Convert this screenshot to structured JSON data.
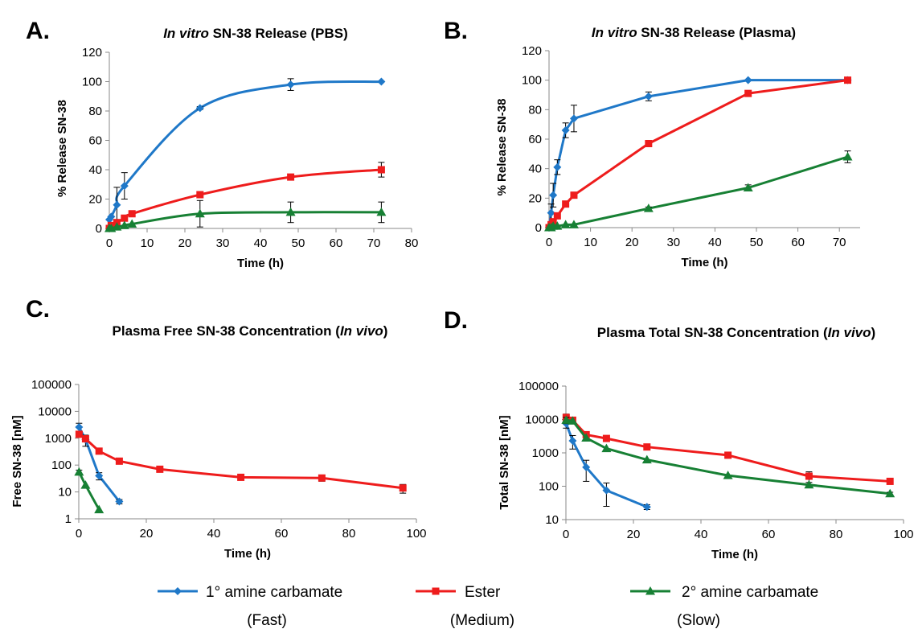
{
  "legend": [
    {
      "name": "1° amine carbamate",
      "sub": "(Fast)",
      "color": "#1f78c8",
      "marker": "diamond"
    },
    {
      "name": "Ester",
      "sub": "(Medium)",
      "color": "#ee1c1c",
      "marker": "square"
    },
    {
      "name": "2° amine carbamate",
      "sub": "(Slow)",
      "color": "#178034",
      "marker": "triangle"
    }
  ],
  "chart_data": [
    {
      "panel": "A.",
      "title_italic": "In vitro",
      "title_rest": " SN-38 Release (PBS)",
      "type": "line",
      "xlabel": "Time (h)",
      "ylabel": "% Release SN-38",
      "xlim": [
        0,
        80
      ],
      "ylim": [
        0,
        120
      ],
      "xticks": [
        0,
        10,
        20,
        30,
        40,
        50,
        60,
        70,
        80
      ],
      "yticks": [
        0,
        20,
        40,
        60,
        80,
        100,
        120
      ],
      "yscale": "linear",
      "smooth": true,
      "series": [
        {
          "name": "1° amine carbamate",
          "color": "#1f78c8",
          "marker": "diamond",
          "x": [
            0,
            0.5,
            2,
            4,
            24,
            48,
            72
          ],
          "y": [
            6,
            8,
            16,
            29,
            82,
            98,
            100
          ],
          "err": [
            0,
            0,
            12,
            9,
            1,
            4,
            0
          ]
        },
        {
          "name": "Ester",
          "color": "#ee1c1c",
          "marker": "square",
          "x": [
            0,
            0.5,
            2,
            4,
            6,
            24,
            48,
            72
          ],
          "y": [
            0,
            2,
            4,
            7,
            10,
            23,
            35,
            40
          ],
          "err": [
            0,
            0,
            0,
            0,
            0,
            1,
            1,
            5
          ]
        },
        {
          "name": "2° amine carbamate",
          "color": "#178034",
          "marker": "triangle",
          "x": [
            0,
            0.5,
            2,
            4,
            6,
            24,
            48,
            72
          ],
          "y": [
            0,
            0,
            1,
            2,
            3,
            10,
            11,
            11
          ],
          "err": [
            0,
            0,
            0,
            0,
            0,
            9,
            7,
            7
          ]
        }
      ]
    },
    {
      "panel": "B.",
      "title_italic": "In vitro",
      "title_rest": " SN-38 Release (Plasma)",
      "type": "line",
      "xlabel": "Time (h)",
      "ylabel": "% Release SN-38",
      "xlim": [
        0,
        75
      ],
      "ylim": [
        0,
        120
      ],
      "xticks": [
        0,
        10,
        20,
        30,
        40,
        50,
        60,
        70
      ],
      "yticks": [
        0,
        20,
        40,
        60,
        80,
        100,
        120
      ],
      "yscale": "linear",
      "smooth": false,
      "series": [
        {
          "name": "1° amine carbamate",
          "color": "#1f78c8",
          "marker": "diamond",
          "x": [
            0,
            0.5,
            1,
            2,
            4,
            6,
            24,
            48,
            72
          ],
          "y": [
            0,
            10,
            22,
            41,
            66,
            74,
            89,
            100,
            100
          ],
          "err": [
            0,
            6,
            8,
            5,
            5,
            9,
            3,
            0,
            0
          ]
        },
        {
          "name": "Ester",
          "color": "#ee1c1c",
          "marker": "square",
          "x": [
            0,
            0.5,
            1,
            2,
            4,
            6,
            24,
            48,
            72
          ],
          "y": [
            0,
            2,
            4,
            8,
            16,
            22,
            57,
            91,
            100
          ],
          "err": [
            0,
            0,
            0,
            0,
            0,
            0,
            0,
            0,
            0
          ]
        },
        {
          "name": "2° amine carbamate",
          "color": "#178034",
          "marker": "triangle",
          "x": [
            0,
            0.5,
            1,
            2,
            4,
            6,
            24,
            48,
            72
          ],
          "y": [
            0,
            0,
            1,
            1,
            2,
            2,
            13,
            27,
            48
          ],
          "err": [
            0,
            0,
            0,
            0,
            0,
            0,
            1,
            2,
            4
          ]
        }
      ]
    },
    {
      "panel": "C.",
      "title_italic": "",
      "title_rest": "Plasma Free SN-38 Concentration (",
      "title_italic2": "In vivo",
      "title_end": ")",
      "type": "line",
      "xlabel": "Time (h)",
      "ylabel": "Free SN-38 [nM]",
      "xlim": [
        0,
        100
      ],
      "ylim": [
        1,
        100000
      ],
      "xticks": [
        0,
        20,
        40,
        60,
        80,
        100
      ],
      "yticks": [
        1,
        10,
        100,
        1000,
        10000,
        100000
      ],
      "yscale": "log",
      "smooth": false,
      "series": [
        {
          "name": "1° amine carbamate",
          "color": "#1f78c8",
          "marker": "diamond",
          "x": [
            0.08,
            2,
            6,
            12
          ],
          "y": [
            2600,
            900,
            40,
            4.4
          ],
          "err": [
            1000,
            400,
            12,
            0.8
          ]
        },
        {
          "name": "Ester",
          "color": "#ee1c1c",
          "marker": "square",
          "x": [
            0.08,
            2,
            6,
            12,
            24,
            48,
            72,
            96
          ],
          "y": [
            1400,
            950,
            330,
            140,
            70,
            35,
            33,
            14
          ],
          "err": [
            0,
            0,
            0,
            0,
            15,
            0,
            8,
            5
          ]
        },
        {
          "name": "2° amine carbamate",
          "color": "#178034",
          "marker": "triangle",
          "x": [
            0.08,
            2,
            6
          ],
          "y": [
            55,
            18,
            2.2
          ],
          "err": [
            10,
            0,
            0
          ]
        }
      ]
    },
    {
      "panel": "D.",
      "title_italic": "",
      "title_rest": "Plasma Total SN-38 Concentration (",
      "title_italic2": "In vivo",
      "title_end": ")",
      "type": "line",
      "xlabel": "Time (h)",
      "ylabel": "Total SN-38 [nM]",
      "xlim": [
        0,
        100
      ],
      "ylim": [
        10,
        100000
      ],
      "xticks": [
        0,
        20,
        40,
        60,
        80,
        100
      ],
      "yticks": [
        10,
        100,
        1000,
        10000,
        100000
      ],
      "yscale": "log",
      "smooth": false,
      "series": [
        {
          "name": "1° amine carbamate",
          "color": "#1f78c8",
          "marker": "diamond",
          "x": [
            0.08,
            2,
            6,
            12,
            24
          ],
          "y": [
            7500,
            2300,
            370,
            75,
            24
          ],
          "err": [
            2000,
            1000,
            230,
            50,
            4
          ]
        },
        {
          "name": "Ester",
          "color": "#ee1c1c",
          "marker": "square",
          "x": [
            0.08,
            2,
            6,
            12,
            24,
            48,
            72,
            96
          ],
          "y": [
            11500,
            9500,
            3500,
            2700,
            1500,
            850,
            200,
            140
          ],
          "err": [
            3000,
            0,
            0,
            0,
            0,
            100,
            70,
            20
          ]
        },
        {
          "name": "2° amine carbamate",
          "color": "#178034",
          "marker": "triangle",
          "x": [
            0.08,
            2,
            6,
            12,
            24,
            48,
            72,
            96
          ],
          "y": [
            9500,
            9000,
            2800,
            1350,
            620,
            210,
            110,
            60
          ],
          "err": [
            2000,
            0,
            0,
            0,
            0,
            0,
            0,
            6
          ]
        }
      ]
    }
  ]
}
